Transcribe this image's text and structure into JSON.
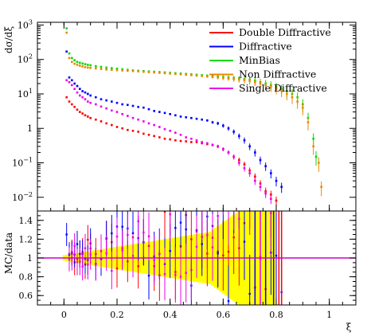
{
  "chart_data": {
    "type": "scatter",
    "xlabel": "ξ",
    "top": {
      "ylabel": "dσ/dξ",
      "yscale": "log",
      "ylim": [
        0.004,
        1200
      ],
      "yticks": [
        {
          "value": 0.01,
          "base": "10",
          "exp": "−2"
        },
        {
          "value": 0.1,
          "base": "10",
          "exp": "−1"
        },
        {
          "value": 1,
          "base": "1",
          "exp": ""
        },
        {
          "value": 10,
          "base": "10",
          "exp": "1"
        },
        {
          "value": 100,
          "base": "10",
          "exp": "2"
        },
        {
          "value": 1000,
          "base": "10",
          "exp": "3"
        }
      ]
    },
    "bottom": {
      "ylabel": "MC/data",
      "ylim": [
        0.5,
        1.5
      ],
      "yticks": [
        "0.6",
        "0.8",
        "1",
        "1.2",
        "1.4"
      ],
      "reference_line": 1.0
    },
    "xlim": [
      -0.1,
      1.1
    ],
    "xticks": [
      "0",
      "0.2",
      "0.4",
      "0.6",
      "0.8",
      "1"
    ],
    "legend_position": "top-right",
    "series": [
      {
        "name": "Double Diffractive",
        "color": "#ff0000",
        "points": [
          [
            0.01,
            8
          ],
          [
            0.02,
            6
          ],
          [
            0.03,
            5
          ],
          [
            0.04,
            4.2
          ],
          [
            0.05,
            3.5
          ],
          [
            0.06,
            3
          ],
          [
            0.07,
            2.7
          ],
          [
            0.08,
            2.4
          ],
          [
            0.09,
            2.2
          ],
          [
            0.1,
            2
          ],
          [
            0.12,
            1.8
          ],
          [
            0.14,
            1.6
          ],
          [
            0.16,
            1.4
          ],
          [
            0.18,
            1.25
          ],
          [
            0.2,
            1.1
          ],
          [
            0.22,
            1
          ],
          [
            0.24,
            0.9
          ],
          [
            0.26,
            0.85
          ],
          [
            0.28,
            0.8
          ],
          [
            0.3,
            0.7
          ],
          [
            0.32,
            0.65
          ],
          [
            0.34,
            0.6
          ],
          [
            0.36,
            0.55
          ],
          [
            0.38,
            0.5
          ],
          [
            0.4,
            0.48
          ],
          [
            0.42,
            0.45
          ],
          [
            0.44,
            0.43
          ],
          [
            0.46,
            0.42
          ],
          [
            0.48,
            0.4
          ],
          [
            0.5,
            0.4
          ],
          [
            0.52,
            0.37
          ],
          [
            0.54,
            0.35
          ],
          [
            0.56,
            0.33
          ],
          [
            0.58,
            0.3
          ],
          [
            0.6,
            0.25
          ],
          [
            0.62,
            0.2
          ],
          [
            0.64,
            0.15
          ],
          [
            0.66,
            0.12
          ],
          [
            0.68,
            0.09
          ],
          [
            0.7,
            0.06
          ],
          [
            0.72,
            0.04
          ],
          [
            0.74,
            0.025
          ],
          [
            0.76,
            0.015
          ],
          [
            0.78,
            0.012
          ],
          [
            0.8,
            0.008
          ]
        ]
      },
      {
        "name": "Diffractive",
        "color": "#0000ff",
        "points": [
          [
            0.01,
            170
          ],
          [
            0.02,
            30
          ],
          [
            0.03,
            25
          ],
          [
            0.04,
            20
          ],
          [
            0.05,
            17
          ],
          [
            0.06,
            14
          ],
          [
            0.07,
            12
          ],
          [
            0.08,
            11
          ],
          [
            0.09,
            10
          ],
          [
            0.1,
            9
          ],
          [
            0.12,
            8
          ],
          [
            0.14,
            7
          ],
          [
            0.16,
            6.5
          ],
          [
            0.18,
            6
          ],
          [
            0.2,
            5.5
          ],
          [
            0.22,
            5
          ],
          [
            0.24,
            4.8
          ],
          [
            0.26,
            4.5
          ],
          [
            0.28,
            4.2
          ],
          [
            0.3,
            4
          ],
          [
            0.32,
            3.6
          ],
          [
            0.34,
            3.2
          ],
          [
            0.36,
            3
          ],
          [
            0.38,
            2.8
          ],
          [
            0.4,
            2.6
          ],
          [
            0.42,
            2.4
          ],
          [
            0.44,
            2.2
          ],
          [
            0.46,
            2.1
          ],
          [
            0.48,
            2
          ],
          [
            0.5,
            1.9
          ],
          [
            0.52,
            1.8
          ],
          [
            0.54,
            1.7
          ],
          [
            0.56,
            1.5
          ],
          [
            0.58,
            1.4
          ],
          [
            0.6,
            1.2
          ],
          [
            0.62,
            1
          ],
          [
            0.64,
            0.8
          ],
          [
            0.66,
            0.6
          ],
          [
            0.68,
            0.45
          ],
          [
            0.7,
            0.3
          ],
          [
            0.72,
            0.2
          ],
          [
            0.74,
            0.12
          ],
          [
            0.76,
            0.08
          ],
          [
            0.78,
            0.05
          ],
          [
            0.8,
            0.03
          ],
          [
            0.82,
            0.02
          ]
        ]
      },
      {
        "name": "MinBias",
        "color": "#00dd00",
        "points": [
          [
            0.01,
            800
          ],
          [
            0.02,
            150
          ],
          [
            0.03,
            110
          ],
          [
            0.04,
            95
          ],
          [
            0.05,
            85
          ],
          [
            0.06,
            80
          ],
          [
            0.07,
            76
          ],
          [
            0.08,
            73
          ],
          [
            0.09,
            70
          ],
          [
            0.1,
            68
          ],
          [
            0.12,
            64
          ],
          [
            0.14,
            61
          ],
          [
            0.16,
            58
          ],
          [
            0.18,
            56
          ],
          [
            0.2,
            54
          ],
          [
            0.22,
            52
          ],
          [
            0.24,
            50
          ],
          [
            0.26,
            48
          ],
          [
            0.28,
            47
          ],
          [
            0.3,
            46
          ],
          [
            0.32,
            45
          ],
          [
            0.34,
            44
          ],
          [
            0.36,
            43
          ],
          [
            0.38,
            42
          ],
          [
            0.4,
            41
          ],
          [
            0.42,
            40
          ],
          [
            0.44,
            39
          ],
          [
            0.46,
            38
          ],
          [
            0.48,
            37
          ],
          [
            0.5,
            36
          ],
          [
            0.52,
            35
          ],
          [
            0.54,
            34
          ],
          [
            0.56,
            33
          ],
          [
            0.58,
            32
          ],
          [
            0.6,
            31
          ],
          [
            0.62,
            30
          ],
          [
            0.64,
            29
          ],
          [
            0.66,
            28
          ],
          [
            0.68,
            27
          ],
          [
            0.7,
            26
          ],
          [
            0.72,
            24
          ],
          [
            0.74,
            22
          ],
          [
            0.76,
            20
          ],
          [
            0.78,
            18
          ],
          [
            0.8,
            16
          ],
          [
            0.82,
            14
          ],
          [
            0.84,
            12
          ],
          [
            0.86,
            10
          ],
          [
            0.88,
            8
          ],
          [
            0.9,
            5
          ],
          [
            0.92,
            2
          ],
          [
            0.94,
            0.5
          ],
          [
            0.95,
            0.15
          ]
        ]
      },
      {
        "name": "Non Diffractive",
        "color": "#ee8800",
        "points": [
          [
            0.01,
            600
          ],
          [
            0.02,
            110
          ],
          [
            0.03,
            85
          ],
          [
            0.04,
            75
          ],
          [
            0.05,
            70
          ],
          [
            0.06,
            66
          ],
          [
            0.07,
            63
          ],
          [
            0.08,
            60
          ],
          [
            0.09,
            58
          ],
          [
            0.1,
            57
          ],
          [
            0.12,
            55
          ],
          [
            0.14,
            53
          ],
          [
            0.16,
            51
          ],
          [
            0.18,
            50
          ],
          [
            0.2,
            49
          ],
          [
            0.22,
            48
          ],
          [
            0.24,
            47
          ],
          [
            0.26,
            46
          ],
          [
            0.28,
            45
          ],
          [
            0.3,
            44
          ],
          [
            0.32,
            43
          ],
          [
            0.34,
            42
          ],
          [
            0.36,
            41
          ],
          [
            0.38,
            40
          ],
          [
            0.4,
            39
          ],
          [
            0.42,
            38
          ],
          [
            0.44,
            37
          ],
          [
            0.46,
            36
          ],
          [
            0.48,
            35
          ],
          [
            0.5,
            34
          ],
          [
            0.52,
            33
          ],
          [
            0.54,
            32
          ],
          [
            0.56,
            31
          ],
          [
            0.58,
            30
          ],
          [
            0.6,
            29
          ],
          [
            0.62,
            28
          ],
          [
            0.64,
            27
          ],
          [
            0.66,
            26
          ],
          [
            0.68,
            25
          ],
          [
            0.7,
            24
          ],
          [
            0.72,
            22
          ],
          [
            0.74,
            20
          ],
          [
            0.76,
            18
          ],
          [
            0.78,
            16
          ],
          [
            0.8,
            14
          ],
          [
            0.82,
            12
          ],
          [
            0.84,
            10
          ],
          [
            0.86,
            8
          ],
          [
            0.88,
            6
          ],
          [
            0.9,
            4
          ],
          [
            0.92,
            1.5
          ],
          [
            0.94,
            0.3
          ],
          [
            0.96,
            0.1
          ],
          [
            0.97,
            0.02
          ]
        ]
      },
      {
        "name": "Single Diffractive",
        "color": "#ee00ee",
        "points": [
          [
            0.01,
            25
          ],
          [
            0.02,
            22
          ],
          [
            0.03,
            18
          ],
          [
            0.04,
            14
          ],
          [
            0.05,
            11
          ],
          [
            0.06,
            9
          ],
          [
            0.07,
            8
          ],
          [
            0.08,
            7
          ],
          [
            0.09,
            6
          ],
          [
            0.1,
            5.5
          ],
          [
            0.12,
            5
          ],
          [
            0.14,
            4.3
          ],
          [
            0.16,
            3.8
          ],
          [
            0.18,
            3.3
          ],
          [
            0.2,
            3
          ],
          [
            0.22,
            2.6
          ],
          [
            0.24,
            2.3
          ],
          [
            0.26,
            2
          ],
          [
            0.28,
            1.8
          ],
          [
            0.3,
            1.6
          ],
          [
            0.32,
            1.4
          ],
          [
            0.34,
            1.25
          ],
          [
            0.36,
            1.1
          ],
          [
            0.38,
            0.95
          ],
          [
            0.4,
            0.85
          ],
          [
            0.42,
            0.75
          ],
          [
            0.44,
            0.65
          ],
          [
            0.46,
            0.55
          ],
          [
            0.48,
            0.5
          ],
          [
            0.5,
            0.45
          ],
          [
            0.52,
            0.4
          ],
          [
            0.54,
            0.37
          ],
          [
            0.56,
            0.33
          ],
          [
            0.58,
            0.3
          ],
          [
            0.6,
            0.25
          ],
          [
            0.62,
            0.2
          ],
          [
            0.64,
            0.15
          ],
          [
            0.66,
            0.1
          ],
          [
            0.68,
            0.07
          ],
          [
            0.7,
            0.05
          ],
          [
            0.72,
            0.03
          ],
          [
            0.74,
            0.02
          ],
          [
            0.76,
            0.013
          ],
          [
            0.78,
            0.009
          ]
        ]
      }
    ],
    "data_band_color": "#ffff00"
  }
}
